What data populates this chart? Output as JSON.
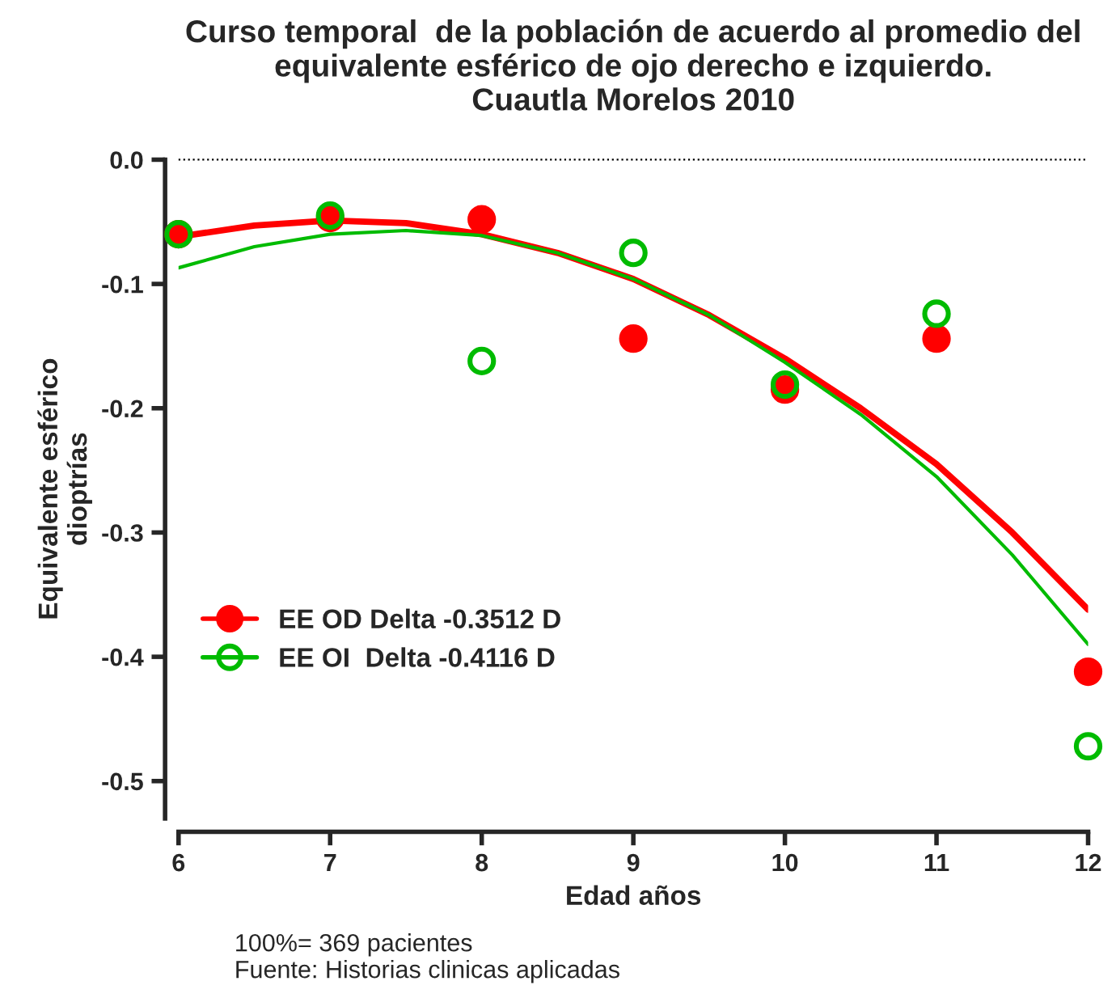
{
  "chart_data": {
    "type": "scatter",
    "title": "Curso temporal  de la población de acuerdo al promedio del\nequivalente esférico de ojo derecho e izquierdo.\nCuautla Morelos 2010",
    "xlabel": "Edad años",
    "ylabel": "Equivalente esférico\ndioptrías",
    "x": [
      6,
      7,
      8,
      9,
      10,
      11,
      12
    ],
    "series": [
      {
        "name": "EE OD Delta -0.3512 D",
        "color": "#ff0000",
        "marker": "circle",
        "values": [
          -0.06,
          -0.047,
          -0.048,
          -0.144,
          -0.185,
          -0.144,
          -0.412
        ]
      },
      {
        "name": "EE OI  Delta -0.4116 D",
        "color": "#00bb00",
        "marker": "circle",
        "values": [
          -0.06,
          -0.045,
          -0.162,
          -0.075,
          -0.181,
          -0.124,
          -0.472
        ]
      },
      {
        "type": "line",
        "color": "#ff0000",
        "x": [
          6,
          6.5,
          7,
          7.5,
          8,
          8.5,
          9,
          9.5,
          10,
          10.5,
          11,
          11.5,
          12
        ],
        "values": [
          -0.062,
          -0.053,
          -0.049,
          -0.051,
          -0.06,
          -0.075,
          -0.096,
          -0.125,
          -0.16,
          -0.2,
          -0.245,
          -0.3,
          -0.362
        ]
      },
      {
        "type": "line",
        "color": "#00bb00",
        "x": [
          6,
          6.5,
          7,
          7.5,
          8,
          8.5,
          9,
          9.5,
          10,
          10.5,
          11,
          11.5,
          12
        ],
        "values": [
          -0.087,
          -0.07,
          -0.06,
          -0.057,
          -0.061,
          -0.075,
          -0.096,
          -0.125,
          -0.163,
          -0.205,
          -0.255,
          -0.318,
          -0.39
        ]
      }
    ],
    "xlim": [
      6,
      12
    ],
    "xticks": [
      6,
      7,
      8,
      9,
      10,
      11,
      12
    ],
    "ylim": [
      -0.53,
      0.0
    ],
    "yticks": [
      {
        "value": 0,
        "label": "0.0"
      },
      -0.1,
      -0.2,
      -0.3,
      -0.4,
      -0.5
    ],
    "ref_lines": [
      {
        "axis": "y",
        "value": 0,
        "color": "#000000",
        "line_style": "dotted"
      }
    ],
    "grid": false,
    "legend": "left",
    "annotations": [
      "100%= 369 pacientes\nFuente: Historias clinicas aplicadas"
    ]
  }
}
